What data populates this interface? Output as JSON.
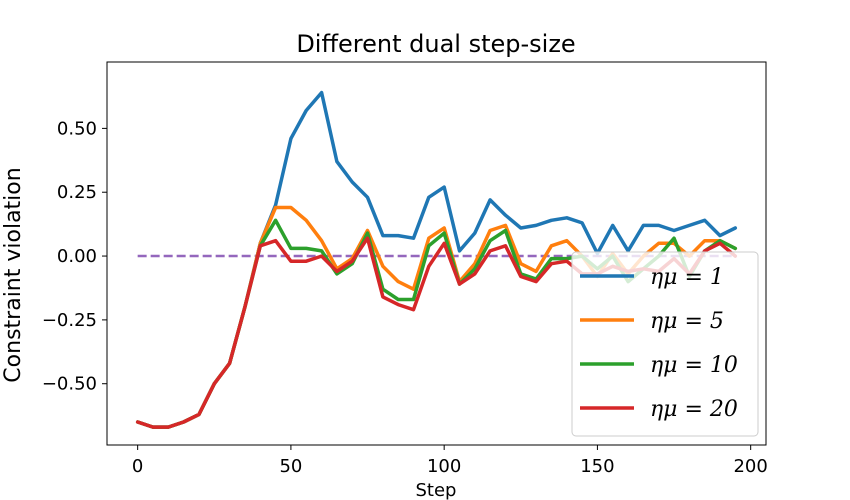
{
  "chart_data": {
    "type": "line",
    "title": "Different dual step-size",
    "xlabel": "Step",
    "ylabel": "Constraint violation",
    "xlim": [
      -10,
      205
    ],
    "ylim": [
      -0.74,
      0.76
    ],
    "xticks": [
      0,
      50,
      100,
      150,
      200
    ],
    "xtick_labels": [
      "0",
      "50",
      "100",
      "150",
      "200"
    ],
    "yticks": [
      -0.5,
      -0.25,
      0.0,
      0.25,
      0.5
    ],
    "ytick_labels": [
      "−0.50",
      "−0.25",
      "0.00",
      "0.25",
      "0.50"
    ],
    "grid": false,
    "legend_position": "lower-right",
    "x": [
      0,
      5,
      10,
      15,
      20,
      25,
      30,
      35,
      40,
      45,
      50,
      55,
      60,
      65,
      70,
      75,
      80,
      85,
      90,
      95,
      100,
      105,
      110,
      115,
      120,
      125,
      130,
      135,
      140,
      145,
      150,
      155,
      160,
      165,
      170,
      175,
      180,
      185,
      190,
      195
    ],
    "series": [
      {
        "name": "ημ = 1",
        "color": "#1f77b4",
        "values": [
          -0.65,
          -0.67,
          -0.67,
          -0.65,
          -0.62,
          -0.5,
          -0.42,
          -0.2,
          0.05,
          0.2,
          0.46,
          0.57,
          0.64,
          0.37,
          0.29,
          0.23,
          0.08,
          0.08,
          0.07,
          0.23,
          0.27,
          0.02,
          0.09,
          0.22,
          0.16,
          0.11,
          0.12,
          0.14,
          0.15,
          0.13,
          0.01,
          0.12,
          0.02,
          0.12,
          0.12,
          0.1,
          0.12,
          0.14,
          0.08,
          0.11
        ]
      },
      {
        "name": "ημ = 5",
        "color": "#ff7f0e",
        "values": [
          -0.65,
          -0.67,
          -0.67,
          -0.65,
          -0.62,
          -0.5,
          -0.42,
          -0.2,
          0.05,
          0.19,
          0.19,
          0.14,
          0.06,
          -0.05,
          -0.01,
          0.1,
          -0.04,
          -0.1,
          -0.13,
          0.07,
          0.11,
          -0.1,
          -0.03,
          0.1,
          0.12,
          -0.03,
          -0.06,
          0.04,
          0.06,
          0.0,
          -0.08,
          0.01,
          -0.07,
          0.0,
          0.05,
          0.05,
          0.0,
          0.06,
          0.06,
          0.03
        ]
      },
      {
        "name": "ημ = 10",
        "color": "#2ca02c",
        "values": [
          -0.65,
          -0.67,
          -0.67,
          -0.65,
          -0.62,
          -0.5,
          -0.42,
          -0.2,
          0.04,
          0.14,
          0.03,
          0.03,
          0.02,
          -0.07,
          -0.03,
          0.09,
          -0.13,
          -0.17,
          -0.17,
          0.04,
          0.09,
          -0.11,
          -0.05,
          0.06,
          0.1,
          -0.07,
          -0.09,
          -0.01,
          -0.01,
          0.0,
          -0.05,
          0.0,
          -0.1,
          -0.05,
          0.0,
          0.07,
          -0.08,
          0.02,
          0.06,
          0.03
        ]
      },
      {
        "name": "ημ = 20",
        "color": "#d62728",
        "values": [
          -0.65,
          -0.67,
          -0.67,
          -0.65,
          -0.62,
          -0.5,
          -0.42,
          -0.2,
          0.04,
          0.06,
          -0.02,
          -0.02,
          0.0,
          -0.06,
          -0.02,
          0.07,
          -0.16,
          -0.19,
          -0.21,
          -0.04,
          0.05,
          -0.11,
          -0.07,
          0.02,
          0.04,
          -0.08,
          -0.1,
          -0.03,
          -0.02,
          -0.07,
          -0.07,
          -0.04,
          -0.06,
          -0.05,
          -0.06,
          -0.01,
          -0.07,
          0.02,
          0.05,
          0.0
        ]
      }
    ],
    "reference_line": {
      "y": 0.0,
      "x_range": [
        0,
        195
      ],
      "color": "#9467bd",
      "style": "dashed"
    }
  }
}
